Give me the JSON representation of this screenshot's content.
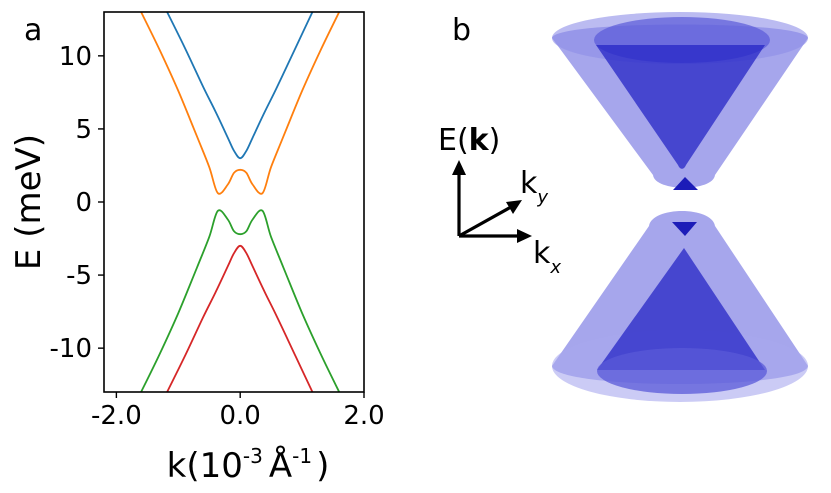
{
  "panel_a_label": "a",
  "panel_b_label": "b",
  "chart_data": {
    "type": "line",
    "xlabel": {
      "base": "k(10",
      "sup": "-3",
      "unit": "Å",
      "unit_sup": "-1",
      "close": ")"
    },
    "ylabel": "E (meV)",
    "xlim": [
      -2.2,
      2.0
    ],
    "ylim": [
      -13,
      13
    ],
    "xticks": [
      -2.0,
      0.0,
      2.0
    ],
    "xtick_labels": [
      "-2.0",
      "0.0",
      "2.0"
    ],
    "yticks": [
      10,
      5,
      0,
      -5,
      -10
    ],
    "ytick_labels": [
      "10",
      "5",
      "0",
      "-5",
      "-10"
    ],
    "grid": false,
    "series": [
      {
        "color": "#1f77b4",
        "x": [
          -1.18,
          -0.9,
          -0.6,
          -0.4,
          -0.2,
          -0.1,
          0.0,
          0.1,
          0.2,
          0.4,
          0.6,
          0.9,
          1.2
        ],
        "y": [
          13,
          10.6,
          7.9,
          6.2,
          4.4,
          3.5,
          3.0,
          3.5,
          4.4,
          6.2,
          7.9,
          10.6,
          13.3
        ]
      },
      {
        "color": "#ff7f0e",
        "x": [
          -1.6,
          -1.3,
          -1.0,
          -0.7,
          -0.5,
          -0.36,
          -0.2,
          -0.1,
          0.0,
          0.1,
          0.2,
          0.36,
          0.5,
          0.7,
          1.0,
          1.3,
          1.6
        ],
        "y": [
          13,
          10.4,
          7.6,
          4.5,
          2.4,
          0.6,
          1.2,
          2.0,
          2.2,
          2.0,
          1.2,
          0.6,
          2.4,
          4.5,
          7.6,
          10.4,
          13
        ]
      },
      {
        "color": "#2ca02c",
        "x": [
          -1.6,
          -1.3,
          -1.0,
          -0.7,
          -0.5,
          -0.36,
          -0.2,
          -0.1,
          0.0,
          0.1,
          0.2,
          0.36,
          0.5,
          0.7,
          1.0,
          1.3,
          1.6
        ],
        "y": [
          -13,
          -10.4,
          -7.6,
          -4.5,
          -2.4,
          -0.6,
          -1.2,
          -2.0,
          -2.2,
          -2.0,
          -1.2,
          -0.6,
          -2.4,
          -4.5,
          -7.6,
          -10.4,
          -13
        ]
      },
      {
        "color": "#d62728",
        "x": [
          -1.18,
          -0.9,
          -0.6,
          -0.4,
          -0.2,
          -0.1,
          0.0,
          0.1,
          0.2,
          0.4,
          0.6,
          0.9,
          1.2
        ],
        "y": [
          -13,
          -10.6,
          -7.9,
          -6.2,
          -4.4,
          -3.5,
          -3.0,
          -3.5,
          -4.4,
          -6.2,
          -7.9,
          -10.6,
          -13.3
        ]
      }
    ]
  },
  "diagram": {
    "energy_axis": {
      "base": "E(",
      "bold": "k",
      "close": ")"
    },
    "kx_axis": {
      "base": "k",
      "sub": "x"
    },
    "ky_axis": {
      "base": "k",
      "sub": "y"
    },
    "cone_color": "#3a3ad4"
  }
}
